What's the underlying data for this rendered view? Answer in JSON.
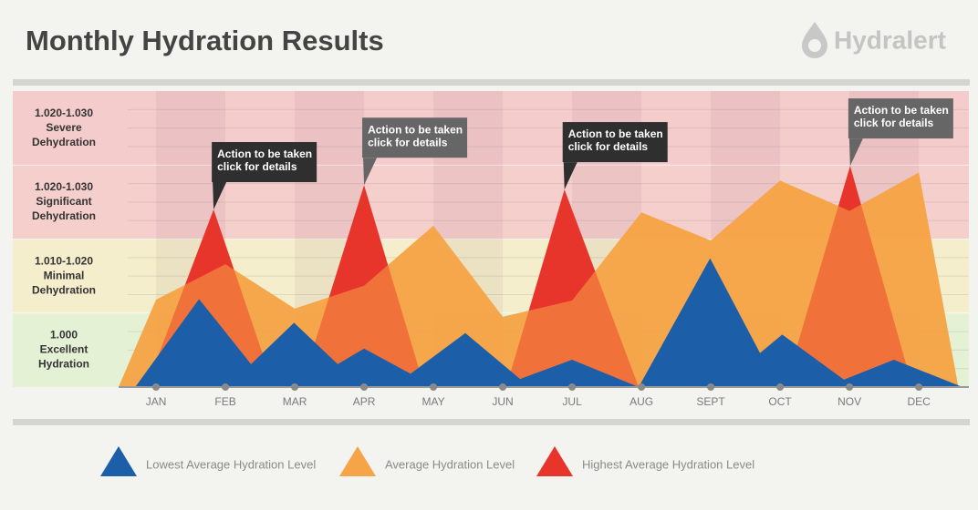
{
  "brand": "Hydralert",
  "chart_data": {
    "type": "area",
    "title": "Monthly Hydration Results",
    "xlim": [
      0.46,
      12.63
    ],
    "ylim": [
      0,
      4
    ],
    "xticks": [
      {
        "value": 1,
        "label": "JAN"
      },
      {
        "value": 2,
        "label": "FEB"
      },
      {
        "value": 3,
        "label": "MAR"
      },
      {
        "value": 4,
        "label": "APR"
      },
      {
        "value": 5,
        "label": "MAY"
      },
      {
        "value": 6,
        "label": "JUN"
      },
      {
        "value": 7,
        "label": "JUL"
      },
      {
        "value": 8,
        "label": "AUG"
      },
      {
        "value": 9,
        "label": "SEPT"
      },
      {
        "value": 10,
        "label": "OCT"
      },
      {
        "value": 11,
        "label": "NOV"
      },
      {
        "value": 12,
        "label": "DEC"
      }
    ],
    "bands": [
      {
        "label": [
          "1.000",
          "Excellent",
          "Hydration"
        ],
        "color": "#e5f1d5"
      },
      {
        "label": [
          "1.010-1.020",
          "Minimal",
          "Dehydration"
        ],
        "color": "#f5eecc"
      },
      {
        "label": [
          "1.020-1.030",
          "Significant",
          "Dehydration"
        ],
        "color": "#f5cfcc"
      },
      {
        "label": [
          "1.020-1.030",
          "Severe",
          "Dehydration"
        ],
        "color": "#f5cccc"
      }
    ],
    "series": [
      {
        "name": "Lowest Average Hydration Level",
        "color": "#1d5ea8",
        "x": [
          0.7,
          1.62,
          2.37,
          2.99,
          3.62,
          4,
          4.67,
          5.46,
          6.25,
          7,
          7.96,
          8.99,
          9.71,
          10.03,
          10.92,
          11.64,
          12.63
        ],
        "values": [
          0,
          1.19,
          0.31,
          0.87,
          0.31,
          0.52,
          0.18,
          0.73,
          0.11,
          0.37,
          0,
          1.74,
          0.46,
          0.71,
          0.1,
          0.37,
          0
        ]
      },
      {
        "name": "Average Hydration Level",
        "color": "#f5a447",
        "x": [
          0.46,
          1,
          2,
          3,
          4,
          5,
          6,
          7,
          8,
          9,
          10,
          11,
          12,
          12.57
        ],
        "values": [
          0,
          1.18,
          1.66,
          1.06,
          1.37,
          2.18,
          0.95,
          1.17,
          2.36,
          1.98,
          2.79,
          2.38,
          2.9,
          0
        ]
      },
      {
        "name": "Highest Average Hydration Level",
        "color": "#e8352c",
        "x": [
          0.86,
          1.83,
          2.7,
          3.09,
          4,
          4.87,
          6.05,
          6.89,
          7.96,
          10.07,
          11.01,
          11.91
        ],
        "values": [
          0,
          2.4,
          0,
          0,
          2.73,
          0,
          0,
          2.67,
          0,
          0,
          2.99,
          0
        ]
      }
    ],
    "annotations": [
      {
        "lines": [
          "Action to be taken",
          "click for details"
        ]
      },
      {
        "lines": [
          "Action to be taken",
          "click for details"
        ]
      },
      {
        "lines": [
          "Action to be taken",
          "click for details"
        ]
      },
      {
        "lines": [
          "Action to be taken",
          "click for details"
        ]
      }
    ]
  }
}
